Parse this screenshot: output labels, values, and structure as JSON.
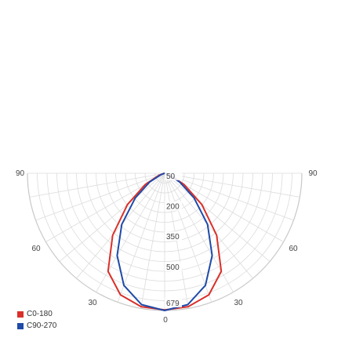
{
  "chart_data": {
    "type": "polar_line",
    "description_units": "candela polar photometric diagram (lower half)",
    "angle_labels_left": [
      "90",
      "60",
      "30"
    ],
    "angle_labels_right": [
      "90",
      "60",
      "30"
    ],
    "angle_label_bottom": "0",
    "radial_labels": [
      "50",
      "200",
      "350",
      "500",
      "679"
    ],
    "radial_ticks": [
      50,
      200,
      350,
      500,
      679
    ],
    "r_max": 679,
    "angle_grid_step_deg": 10,
    "radial_ring_count": 14,
    "series": [
      {
        "name": "C0-180",
        "color": "#d9302a",
        "angles_deg": [
          -90,
          -80,
          -70,
          -60,
          -50,
          -40,
          -30,
          -20,
          -10,
          0,
          10,
          20,
          30,
          40,
          50,
          60,
          70,
          80,
          90
        ],
        "values": [
          0,
          4,
          30,
          110,
          240,
          400,
          560,
          640,
          670,
          676,
          670,
          640,
          560,
          400,
          240,
          110,
          30,
          4,
          0
        ]
      },
      {
        "name": "C90-270",
        "color": "#1f4aa8",
        "angles_deg": [
          -90,
          -80,
          -70,
          -60,
          -50,
          -40,
          -30,
          -20,
          -10,
          0,
          10,
          20,
          30,
          40,
          50,
          60,
          70,
          80,
          90
        ],
        "values": [
          0,
          2,
          20,
          85,
          190,
          330,
          470,
          590,
          660,
          679,
          660,
          590,
          470,
          330,
          190,
          85,
          20,
          2,
          0
        ]
      }
    ]
  },
  "legend": {
    "items": [
      {
        "label": "C0-180",
        "color": "#d9302a"
      },
      {
        "label": "C90-270",
        "color": "#1f4aa8"
      }
    ]
  }
}
